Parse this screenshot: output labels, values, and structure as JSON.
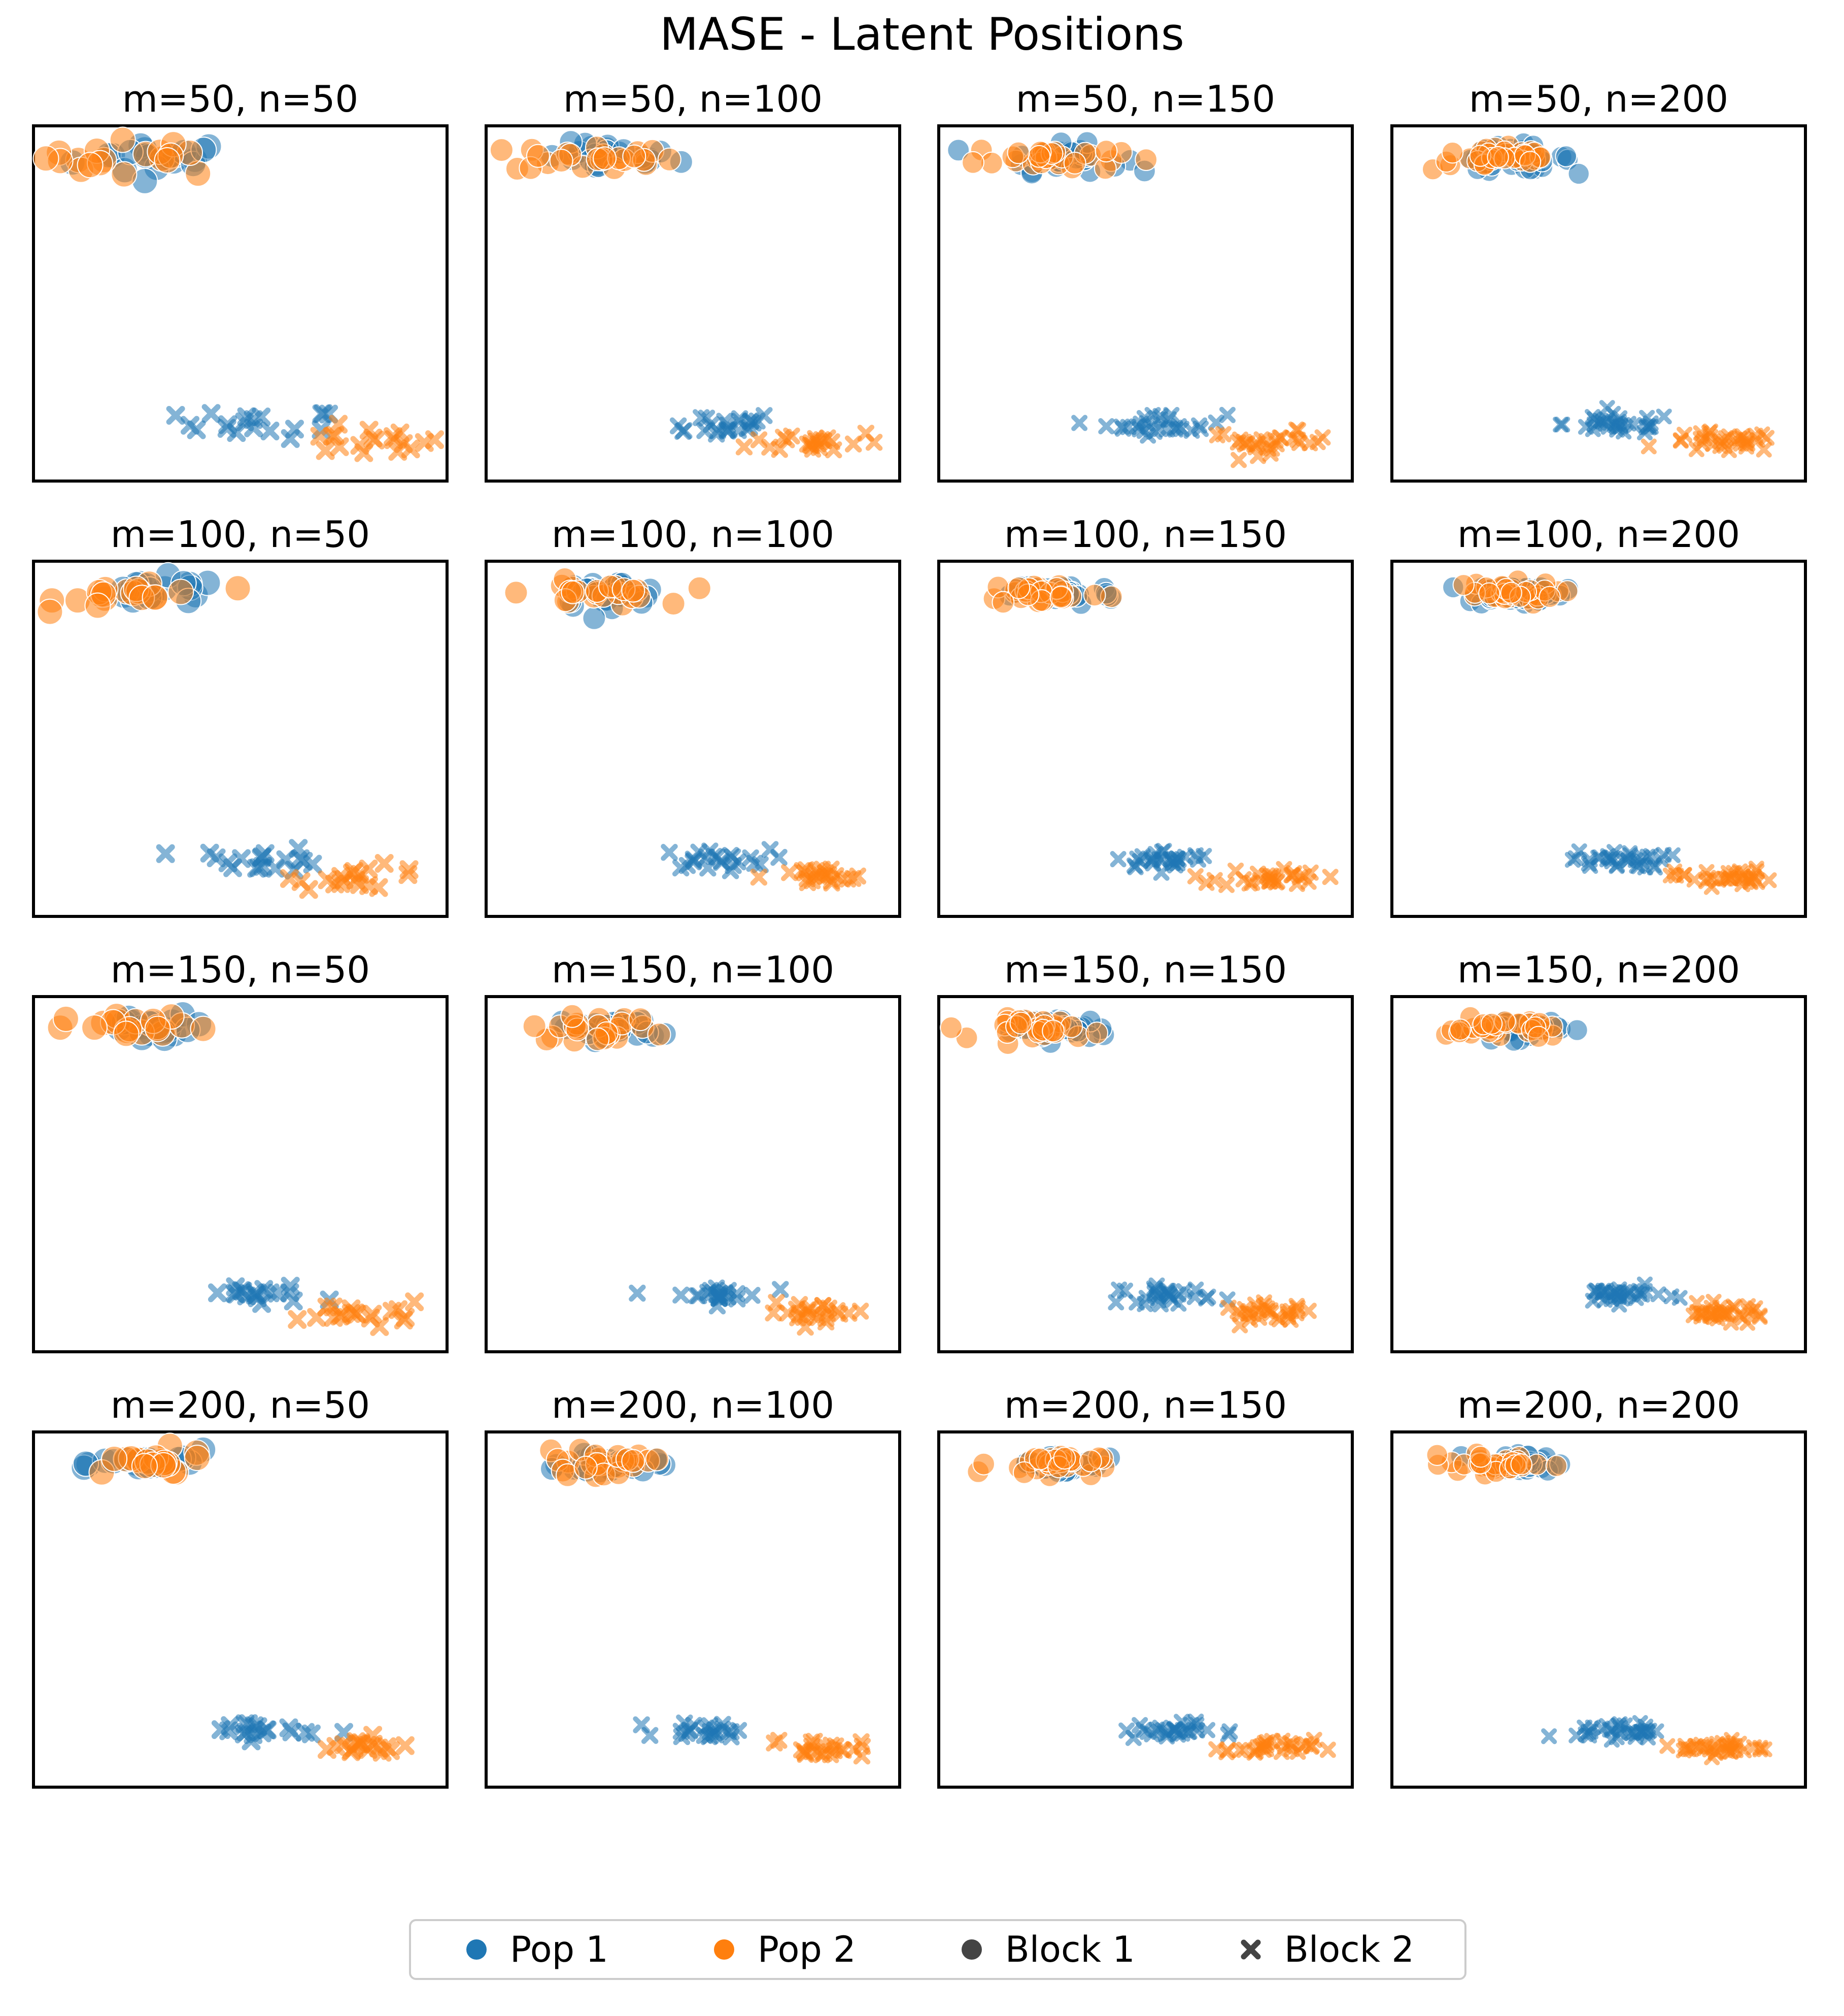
{
  "title": "MASE - Latent Positions",
  "colors": {
    "pop1": "#1f77b4",
    "pop2": "#ff7f0e",
    "block": "#444444"
  },
  "legend": {
    "pop1": "Pop 1",
    "pop2": "Pop 2",
    "block1": "Block 1",
    "block2": "Block 2"
  },
  "chart_data": {
    "type": "scatter",
    "grid": false,
    "axes_visible": false,
    "legend_placement": "bottom-center",
    "panels": [
      {
        "title": "m=50, n=50",
        "m": 50,
        "n": 50
      },
      {
        "title": "m=50, n=100",
        "m": 50,
        "n": 100
      },
      {
        "title": "m=50, n=150",
        "m": 50,
        "n": 150
      },
      {
        "title": "m=50, n=200",
        "m": 50,
        "n": 200
      },
      {
        "title": "m=100, n=50",
        "m": 100,
        "n": 50
      },
      {
        "title": "m=100, n=100",
        "m": 100,
        "n": 100
      },
      {
        "title": "m=100, n=150",
        "m": 100,
        "n": 150
      },
      {
        "title": "m=100, n=200",
        "m": 100,
        "n": 200
      },
      {
        "title": "m=150, n=50",
        "m": 150,
        "n": 50
      },
      {
        "title": "m=150, n=100",
        "m": 150,
        "n": 100
      },
      {
        "title": "m=150, n=150",
        "m": 150,
        "n": 150
      },
      {
        "title": "m=150, n=200",
        "m": 150,
        "n": 200
      },
      {
        "title": "m=200, n=50",
        "m": 200,
        "n": 50
      },
      {
        "title": "m=200, n=100",
        "m": 200,
        "n": 100
      },
      {
        "title": "m=200, n=150",
        "m": 200,
        "n": 150
      },
      {
        "title": "m=200, n=200",
        "m": 200,
        "n": 200
      }
    ],
    "clusters": [
      {
        "pop": "Pop 1",
        "block": "Block 1",
        "center": [
          0.3,
          0.91
        ],
        "spread": [
          0.1,
          0.025
        ]
      },
      {
        "pop": "Pop 2",
        "block": "Block 1",
        "center": [
          0.26,
          0.91
        ],
        "spread": [
          0.12,
          0.025
        ]
      },
      {
        "pop": "Pop 1",
        "block": "Block 2",
        "center": [
          0.55,
          0.16
        ],
        "spread": [
          0.1,
          0.02
        ]
      },
      {
        "pop": "Pop 2",
        "block": "Block 2",
        "center": [
          0.8,
          0.11
        ],
        "spread": [
          0.1,
          0.02
        ]
      }
    ]
  }
}
